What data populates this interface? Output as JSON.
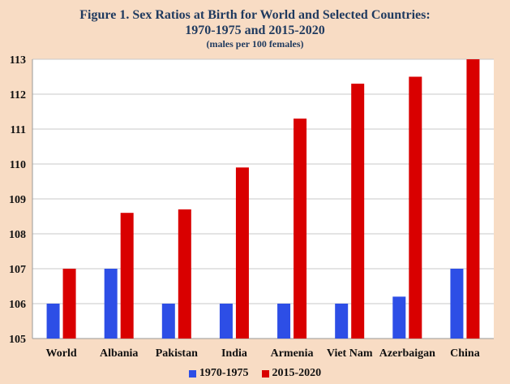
{
  "chart_data": {
    "type": "bar",
    "title": "Figure 1. Sex Ratios at Birth for World and Selected Countries:",
    "title_line2": "1970-1975 and 2015-2020",
    "subtitle": "(males per 100 females)",
    "categories": [
      "World",
      "Albania",
      "Pakistan",
      "India",
      "Armenia",
      "Viet Nam",
      "Azerbaigan",
      "China"
    ],
    "series": [
      {
        "name": "1970-1975",
        "color": "#2d4ee6",
        "values": [
          106.0,
          107.0,
          106.0,
          106.0,
          106.0,
          106.0,
          106.2,
          107.0
        ]
      },
      {
        "name": "2015-2020",
        "color": "#d90000",
        "values": [
          107.0,
          108.6,
          108.7,
          109.9,
          111.3,
          112.3,
          112.5,
          113.0
        ]
      }
    ],
    "ylim": [
      105,
      113
    ],
    "yticks": [
      "105",
      "106",
      "107",
      "108",
      "109",
      "110",
      "111",
      "112",
      "113"
    ],
    "grid": true,
    "legend_position": "bottom"
  }
}
